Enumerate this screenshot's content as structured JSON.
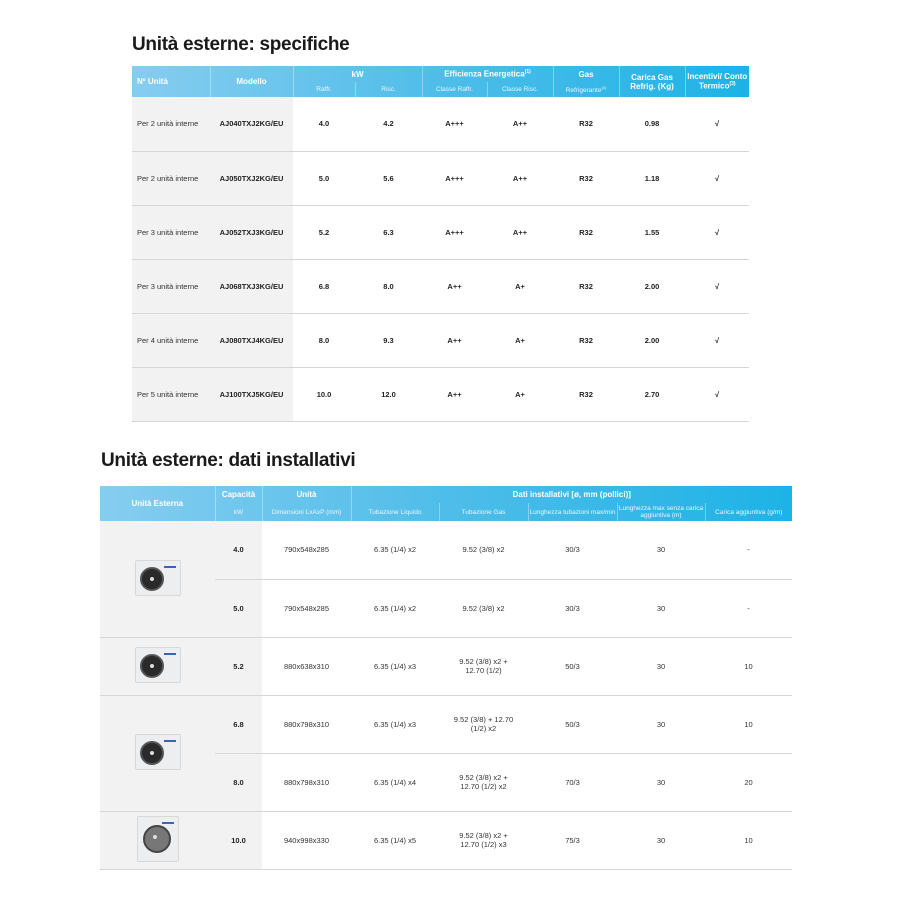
{
  "spec": {
    "title": "Unità esterne: specifiche",
    "headers": {
      "n_unita": "Nº Unità",
      "modello": "Modello",
      "kw": "kW",
      "raffr": "Raffr.",
      "risc": "Risc.",
      "efficienza": "Efficienza Energetica",
      "efficienza_sup": "(1)",
      "classe_raffr": "Classe Raffr.",
      "classe_risc": "Classe Risc.",
      "gas": "Gas",
      "refrigerante": "Refrigerante",
      "refrigerante_sup": "(2)",
      "carica": "Carica Gas Refrig. (Kg)",
      "incentivi": "Incentivi/ Conto Termico",
      "incentivi_sup": "(3)"
    },
    "rows": [
      [
        "Per 2 unità interne",
        "AJ040TXJ2KG/EU",
        "4.0",
        "4.2",
        "A+++",
        "A++",
        "R32",
        "0.98",
        "√"
      ],
      [
        "Per 2 unità interne",
        "AJ050TXJ2KG/EU",
        "5.0",
        "5.6",
        "A+++",
        "A++",
        "R32",
        "1.18",
        "√"
      ],
      [
        "Per 3 unità interne",
        "AJ052TXJ3KG/EU",
        "5.2",
        "6.3",
        "A+++",
        "A++",
        "R32",
        "1.55",
        "√"
      ],
      [
        "Per 3 unità interne",
        "AJ068TXJ3KG/EU",
        "6.8",
        "8.0",
        "A++",
        "A+",
        "R32",
        "2.00",
        "√"
      ],
      [
        "Per 4 unità interne",
        "AJ080TXJ4KG/EU",
        "8.0",
        "9.3",
        "A++",
        "A+",
        "R32",
        "2.00",
        "√"
      ],
      [
        "Per 5 unità interne",
        "AJ100TXJ5KG/EU",
        "10.0",
        "12.0",
        "A++",
        "A+",
        "R32",
        "2.70",
        "√"
      ]
    ]
  },
  "install": {
    "title": "Unità esterne: dati installativi",
    "headers": {
      "unita_esterna": "Unità Esterna",
      "capacita": "Capacità",
      "kw": "kW",
      "unita": "Unità",
      "dimensioni": "Dimensioni LxAxP (mm)",
      "dati": "Dati installativi [ø, mm (pollici)]",
      "liquido": "Tubazione Liquido",
      "gas": "Tubazione Gas",
      "lunghezza": "Lunghezza tubazioni max/min",
      "lunghezza_max": "Lunghezza max senza carica aggiuntiva (m)",
      "carica": "Carica aggiuntiva (g/m)"
    },
    "rows": [
      [
        "4.0",
        "790x548x285",
        "6.35 (1/4) x2",
        "9.52 (3/8) x2",
        "30/3",
        "30",
        "-"
      ],
      [
        "5.0",
        "790x548x285",
        "6.35 (1/4) x2",
        "9.52 (3/8) x2",
        "30/3",
        "30",
        "-"
      ],
      [
        "5.2",
        "880x638x310",
        "6.35 (1/4) x3",
        "9.52 (3/8) x2 + 12.70 (1/2)",
        "50/3",
        "30",
        "10"
      ],
      [
        "6.8",
        "880x798x310",
        "6.35 (1/4) x3",
        "9.52 (3/8) + 12.70 (1/2) x2",
        "50/3",
        "30",
        "10"
      ],
      [
        "8.0",
        "880x798x310",
        "6.35 (1/4) x4",
        "9.52 (3/8) x2 + 12.70 (1/2) x2",
        "70/3",
        "30",
        "20"
      ],
      [
        "10.0",
        "940x998x330",
        "6.35 (1/4) x5",
        "9.52 (3/8) x2 + 12.70 (1/2) x3",
        "75/3",
        "30",
        "10"
      ]
    ],
    "images": [
      {
        "name": "outdoor-unit-small-image",
        "rowspan": 2,
        "type": "small"
      },
      {
        "name": "outdoor-unit-medium-image",
        "rowspan": 1,
        "type": "small"
      },
      {
        "name": "outdoor-unit-large-image",
        "rowspan": 2,
        "type": "small"
      },
      {
        "name": "outdoor-unit-xl-image",
        "rowspan": 1,
        "type": "big"
      }
    ]
  },
  "colors": {
    "header_start": "#86cdf0",
    "header_end": "#1db3e6",
    "grey_cell": "#f2f2f2"
  }
}
